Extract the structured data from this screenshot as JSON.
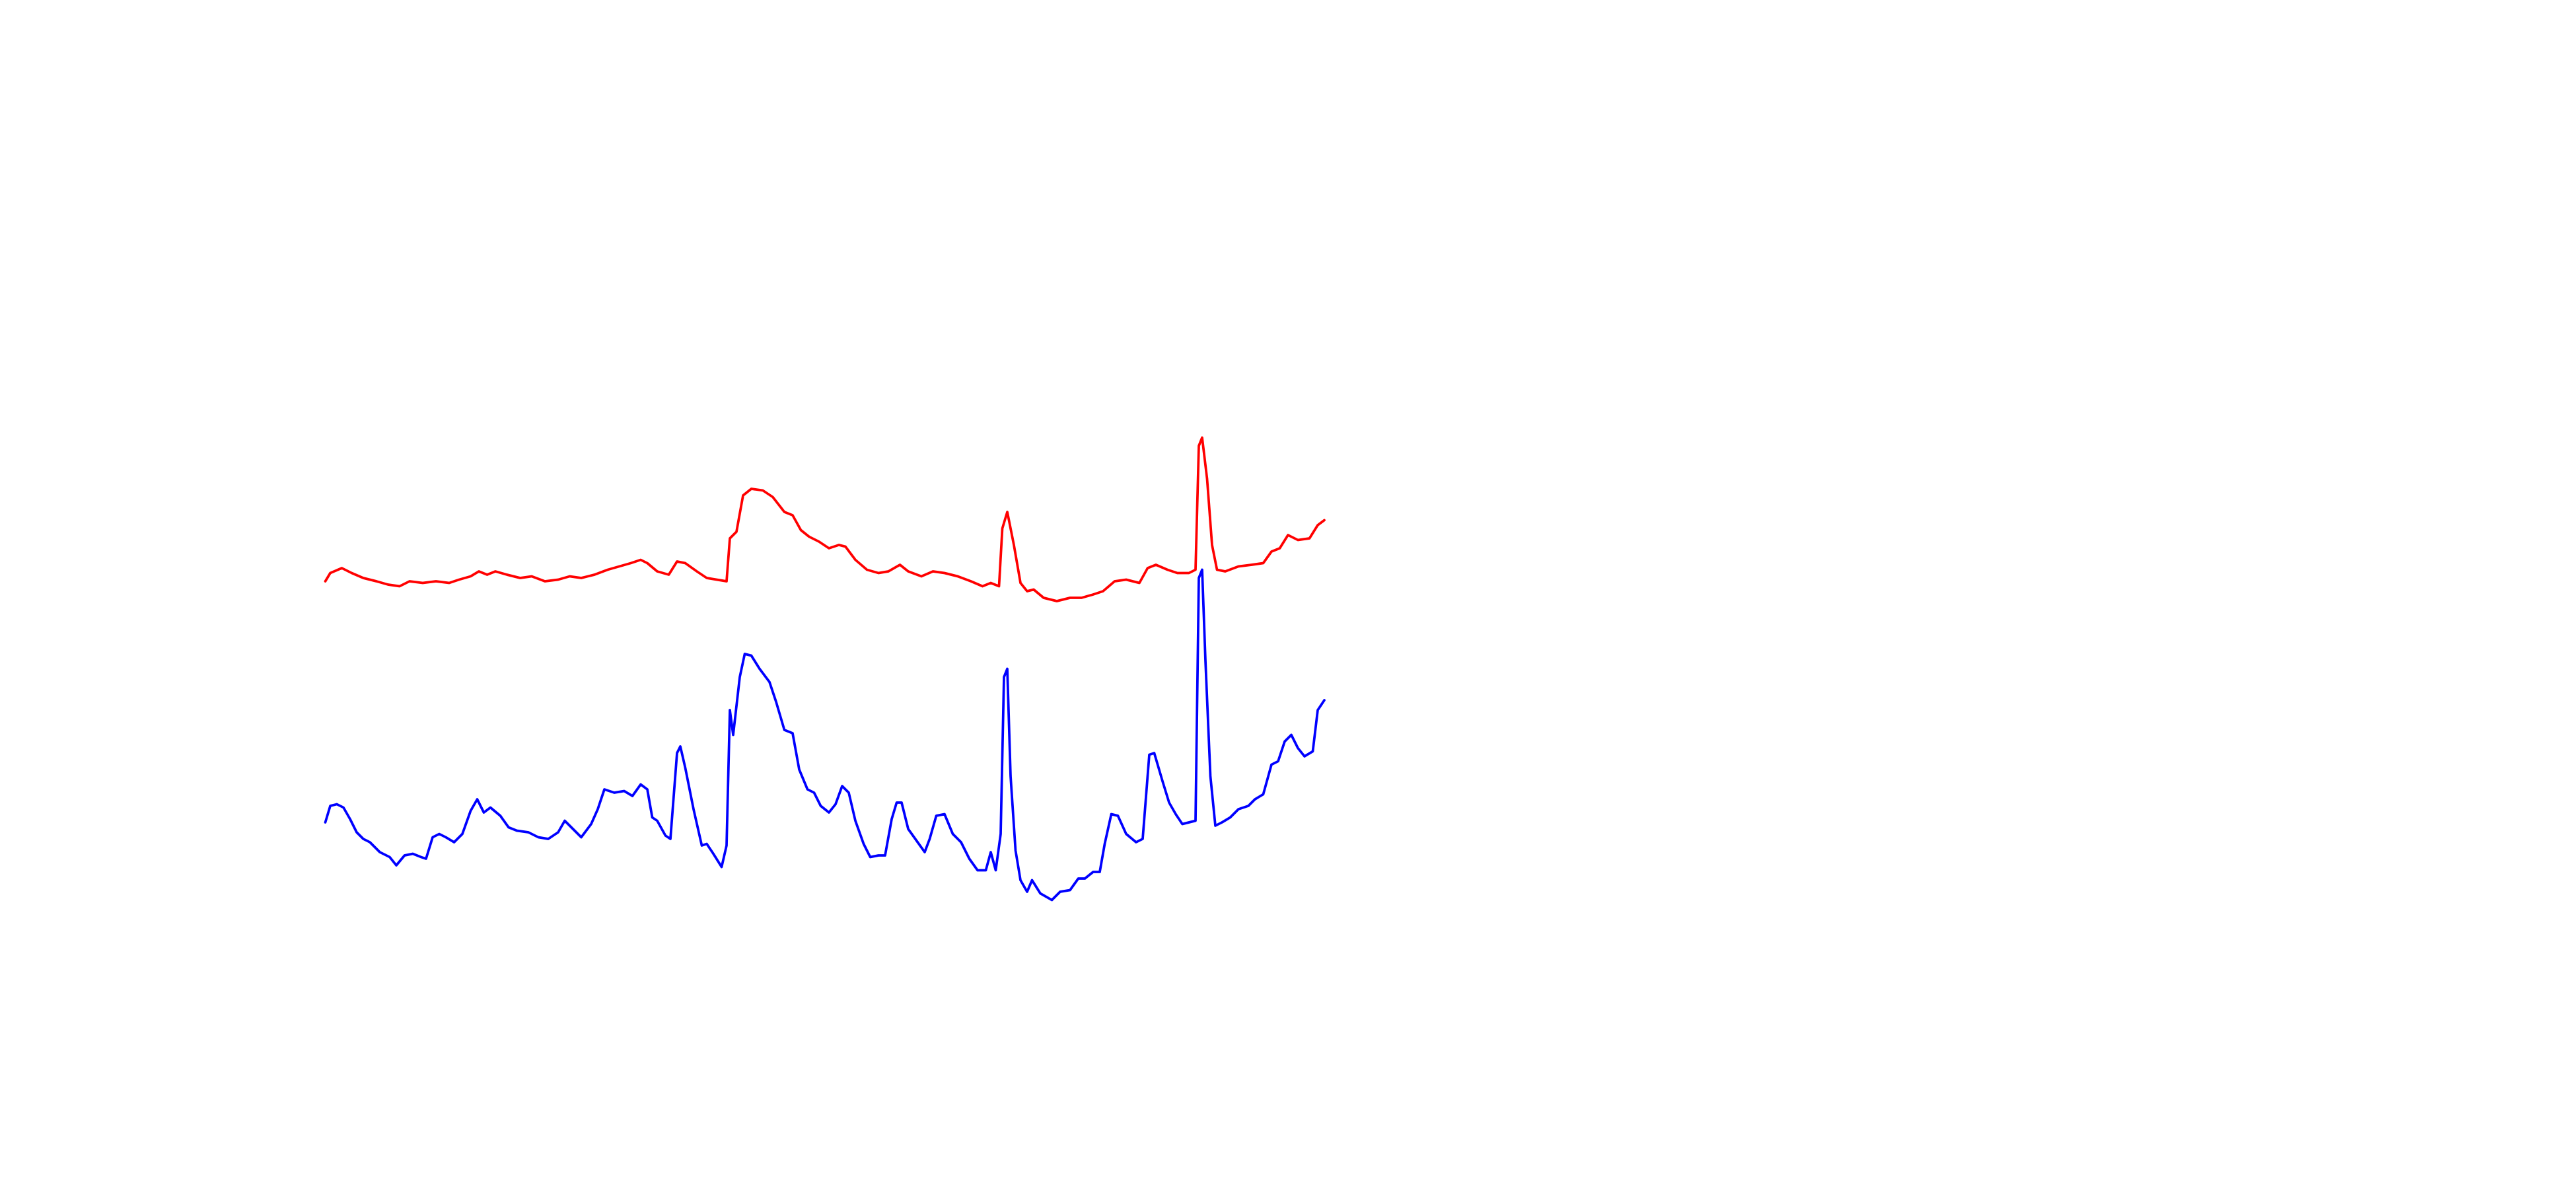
{
  "chart_data": {
    "type": "line",
    "xlim": [
      0,
      1560
    ],
    "ylim": [
      0,
      720
    ],
    "series": [
      {
        "color": "#ff0000",
        "x": [
          197,
          200,
          207,
          213,
          220,
          228,
          235,
          242,
          248,
          256,
          264,
          272,
          278,
          285,
          290,
          295,
          300,
          307,
          315,
          322,
          330,
          338,
          345,
          352,
          360,
          368,
          375,
          382,
          388,
          392,
          398,
          405,
          410,
          415,
          422,
          428,
          434,
          440,
          442,
          446,
          450,
          455,
          462,
          468,
          475,
          480,
          485,
          490,
          496,
          502,
          508,
          512,
          518,
          525,
          532,
          538,
          545,
          550,
          558,
          565,
          572,
          580,
          588,
          595,
          600,
          605,
          607,
          610,
          614,
          618,
          622,
          626,
          632,
          640,
          648,
          655,
          662,
          668,
          675,
          682,
          690,
          695,
          700,
          707,
          713,
          720,
          724,
          726,
          728,
          731,
          734,
          737,
          742,
          750,
          758,
          765,
          770,
          775,
          780,
          786,
          793,
          798,
          802
        ],
        "values": [
          368,
          373,
          376,
          373,
          370,
          368,
          366,
          365,
          368,
          367,
          368,
          367,
          369,
          371,
          374,
          372,
          374,
          372,
          370,
          371,
          368,
          369,
          371,
          370,
          372,
          375,
          377,
          379,
          381,
          379,
          374,
          372,
          380,
          379,
          374,
          370,
          369,
          368,
          394,
          398,
          420,
          424,
          423,
          419,
          410,
          408,
          399,
          395,
          392,
          388,
          390,
          389,
          381,
          375,
          373,
          374,
          378,
          374,
          371,
          374,
          373,
          371,
          368,
          365,
          367,
          365,
          400,
          410,
          390,
          367,
          362,
          363,
          358,
          356,
          358,
          358,
          360,
          362,
          368,
          369,
          367,
          376,
          378,
          375,
          373,
          373,
          375,
          450,
          455,
          430,
          390,
          375,
          374,
          377,
          378,
          379,
          386,
          388,
          396,
          393,
          394,
          402,
          405
        ]
      },
      {
        "color": "#0000ff",
        "x": [
          197,
          200,
          204,
          208,
          212,
          216,
          220,
          224,
          230,
          236,
          240,
          245,
          250,
          255,
          258,
          262,
          266,
          270,
          275,
          280,
          285,
          289,
          293,
          297,
          303,
          308,
          313,
          320,
          326,
          332,
          338,
          342,
          347,
          352,
          358,
          362,
          366,
          372,
          378,
          383,
          388,
          392,
          395,
          398,
          403,
          406,
          410,
          412,
          415,
          420,
          425,
          428,
          432,
          437,
          440,
          442,
          444,
          448,
          451,
          455,
          460,
          466,
          470,
          475,
          480,
          484,
          489,
          493,
          497,
          502,
          506,
          510,
          514,
          518,
          523,
          527,
          532,
          536,
          540,
          543,
          546,
          550,
          555,
          560,
          563,
          567,
          572,
          577,
          582,
          587,
          592,
          597,
          600,
          603,
          606,
          608,
          610,
          612,
          615,
          618,
          622,
          625,
          630,
          637,
          642,
          648,
          653,
          657,
          662,
          666,
          669,
          673,
          677,
          682,
          688,
          692,
          696,
          699,
          704,
          708,
          712,
          716,
          720,
          724,
          726,
          728,
          730,
          733,
          736,
          740,
          745,
          750,
          756,
          760,
          765,
          770,
          774,
          778,
          782,
          786,
          790,
          795,
          798,
          802
        ],
        "values": [
          222,
          232,
          233,
          231,
          224,
          216,
          212,
          210,
          204,
          201,
          196,
          202,
          203,
          201,
          200,
          213,
          215,
          213,
          210,
          215,
          229,
          236,
          228,
          231,
          226,
          219,
          217,
          216,
          213,
          212,
          216,
          223,
          218,
          213,
          221,
          230,
          242,
          240,
          241,
          238,
          245,
          242,
          225,
          223,
          214,
          212,
          264,
          268,
          255,
          230,
          208,
          209,
          203,
          195,
          208,
          290,
          275,
          310,
          324,
          323,
          315,
          307,
          295,
          278,
          276,
          254,
          242,
          240,
          232,
          228,
          233,
          244,
          240,
          223,
          209,
          201,
          202,
          202,
          224,
          234,
          234,
          218,
          211,
          204,
          212,
          226,
          227,
          215,
          210,
          200,
          193,
          193,
          204,
          193,
          215,
          310,
          315,
          250,
          205,
          187,
          180,
          187,
          179,
          175,
          180,
          181,
          188,
          188,
          192,
          192,
          209,
          227,
          226,
          215,
          210,
          212,
          263,
          264,
          247,
          234,
          227,
          221,
          222,
          223,
          370,
          375,
          320,
          250,
          220,
          222,
          225,
          230,
          232,
          236,
          239,
          257,
          259,
          271,
          275,
          267,
          262,
          265,
          290,
          296
        ]
      }
    ]
  }
}
